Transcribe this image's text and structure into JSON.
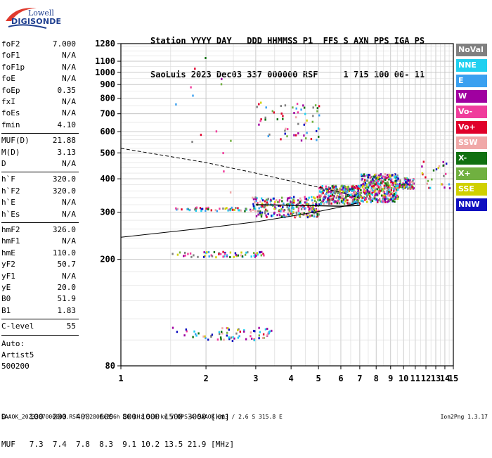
{
  "logo": {
    "line1": "Lowell",
    "line2": "DIGISONDE"
  },
  "header": {
    "line1": "Station YYYY DAY   DDD HHMMSS P1  FFS S AXN PPS IGA PS",
    "line2": "SaoLuis 2023 Dec03 337 000000 RSF     1 715 100 00- 11"
  },
  "params_group1": [
    {
      "label": "foF2",
      "value": "7.000"
    },
    {
      "label": "foF1",
      "value": "N/A"
    },
    {
      "label": "foF1p",
      "value": "N/A"
    },
    {
      "label": "foE",
      "value": "N/A"
    },
    {
      "label": "foEp",
      "value": "0.35"
    },
    {
      "label": "fxI",
      "value": "N/A"
    },
    {
      "label": "foEs",
      "value": "N/A"
    },
    {
      "label": "fmin",
      "value": "4.10"
    }
  ],
  "params_group2": [
    {
      "label": "MUF(D)",
      "value": "21.88"
    },
    {
      "label": "M(D)",
      "value": "3.13"
    },
    {
      "label": "D",
      "value": "N/A"
    }
  ],
  "params_group3": [
    {
      "label": "h`F",
      "value": "320.0"
    },
    {
      "label": "h`F2",
      "value": "320.0"
    },
    {
      "label": "h`E",
      "value": "N/A"
    },
    {
      "label": "h`Es",
      "value": "N/A"
    }
  ],
  "params_group4": [
    {
      "label": "hmF2",
      "value": "326.0"
    },
    {
      "label": "hmF1",
      "value": "N/A"
    },
    {
      "label": "hmE",
      "value": "110.0"
    },
    {
      "label": "yF2",
      "value": "50.7"
    },
    {
      "label": "yF1",
      "value": "N/A"
    },
    {
      "label": "yE",
      "value": "20.0"
    },
    {
      "label": "B0",
      "value": "51.9"
    },
    {
      "label": "B1",
      "value": "1.83"
    }
  ],
  "params_group5": [
    {
      "label": "C-level",
      "value": "55"
    }
  ],
  "autoscale": {
    "line1": "Auto:",
    "line2": "Artist5",
    "line3": "500200"
  },
  "legend": [
    {
      "label": "NoVal",
      "color": "#808080"
    },
    {
      "label": "NNE",
      "color": "#20d0f0"
    },
    {
      "label": "E",
      "color": "#3aa0f0"
    },
    {
      "label": "W",
      "color": "#a000a0"
    },
    {
      "label": "Vo-",
      "color": "#f03c9c"
    },
    {
      "label": "Vo+",
      "color": "#e0002a"
    },
    {
      "label": "SSW",
      "color": "#f0a8a8"
    },
    {
      "label": "X-",
      "color": "#107010"
    },
    {
      "label": "X+",
      "color": "#70b040"
    },
    {
      "label": "SSE",
      "color": "#d0d000"
    },
    {
      "label": "NNW",
      "color": "#1010c0"
    }
  ],
  "muf_table": {
    "d_row": "D     100  200  400  600  800 1000 1500 3000 [km]",
    "muf_row": "MUF   7.3  7.4  7.8  8.3  9.1 10.2 13.5 21.9 [MHz]"
  },
  "footer": "SAAOK_2023337000000.RSF / 280fx256h 50 kHz 5.0 km / DPS-4 SAAOK 903 / 2.6 S 315.8 E",
  "version": "Ion2Png 1.3.17",
  "chart_data": {
    "type": "scatter",
    "x_ticks": [
      1,
      2,
      3,
      4,
      5,
      6,
      7,
      8,
      9,
      10,
      11,
      12,
      13,
      14,
      15
    ],
    "y_ticks": [
      80,
      200,
      300,
      400,
      500,
      600,
      700,
      800,
      900,
      1000,
      1100,
      1280
    ],
    "xlim": [
      1,
      15
    ],
    "ylim": [
      80,
      1280
    ],
    "x_scale": "log",
    "y_scale": "log",
    "grid": true,
    "ionogram_clusters": [
      {
        "f": [
          1.5,
          3.4
        ],
        "h": [
          100,
          112
        ],
        "n": 70
      },
      {
        "f": [
          1.5,
          3.2
        ],
        "h": [
          205,
          215
        ],
        "n": 60
      },
      {
        "f": [
          1.5,
          3.0
        ],
        "h": [
          305,
          315
        ],
        "n": 50
      },
      {
        "f": [
          2.9,
          5.0
        ],
        "h": [
          290,
          345
        ],
        "n": 260
      },
      {
        "f": [
          5.0,
          7.0
        ],
        "h": [
          325,
          380
        ],
        "n": 320
      },
      {
        "f": [
          7.0,
          9.5
        ],
        "h": [
          330,
          420
        ],
        "n": 420
      },
      {
        "f": [
          9.5,
          10.8
        ],
        "h": [
          370,
          405
        ],
        "n": 90
      },
      {
        "f": [
          3.0,
          5.0
        ],
        "h": [
          560,
          780
        ],
        "n": 60
      },
      {
        "f": [
          1.5,
          2.5
        ],
        "h": [
          350,
          1150
        ],
        "n": 14
      },
      {
        "f": [
          11.5,
          14.5
        ],
        "h": [
          370,
          470
        ],
        "n": 25
      }
    ],
    "trace_o": [
      [
        1.0,
        520
      ],
      [
        1.4,
        490
      ],
      [
        2.0,
        460
      ],
      [
        3.0,
        420
      ],
      [
        4.0,
        392
      ],
      [
        5.0,
        372
      ],
      [
        6.0,
        356
      ],
      [
        7.0,
        338
      ]
    ],
    "trace_lower": [
      [
        1.0,
        242
      ],
      [
        2.0,
        262
      ],
      [
        3.0,
        276
      ],
      [
        4.0,
        290
      ],
      [
        5.0,
        302
      ],
      [
        6.0,
        314
      ],
      [
        7.0,
        326
      ]
    ],
    "profile": [
      [
        3.0,
        320
      ],
      [
        4.5,
        318
      ],
      [
        6.0,
        316
      ],
      [
        7.0,
        318
      ]
    ]
  }
}
